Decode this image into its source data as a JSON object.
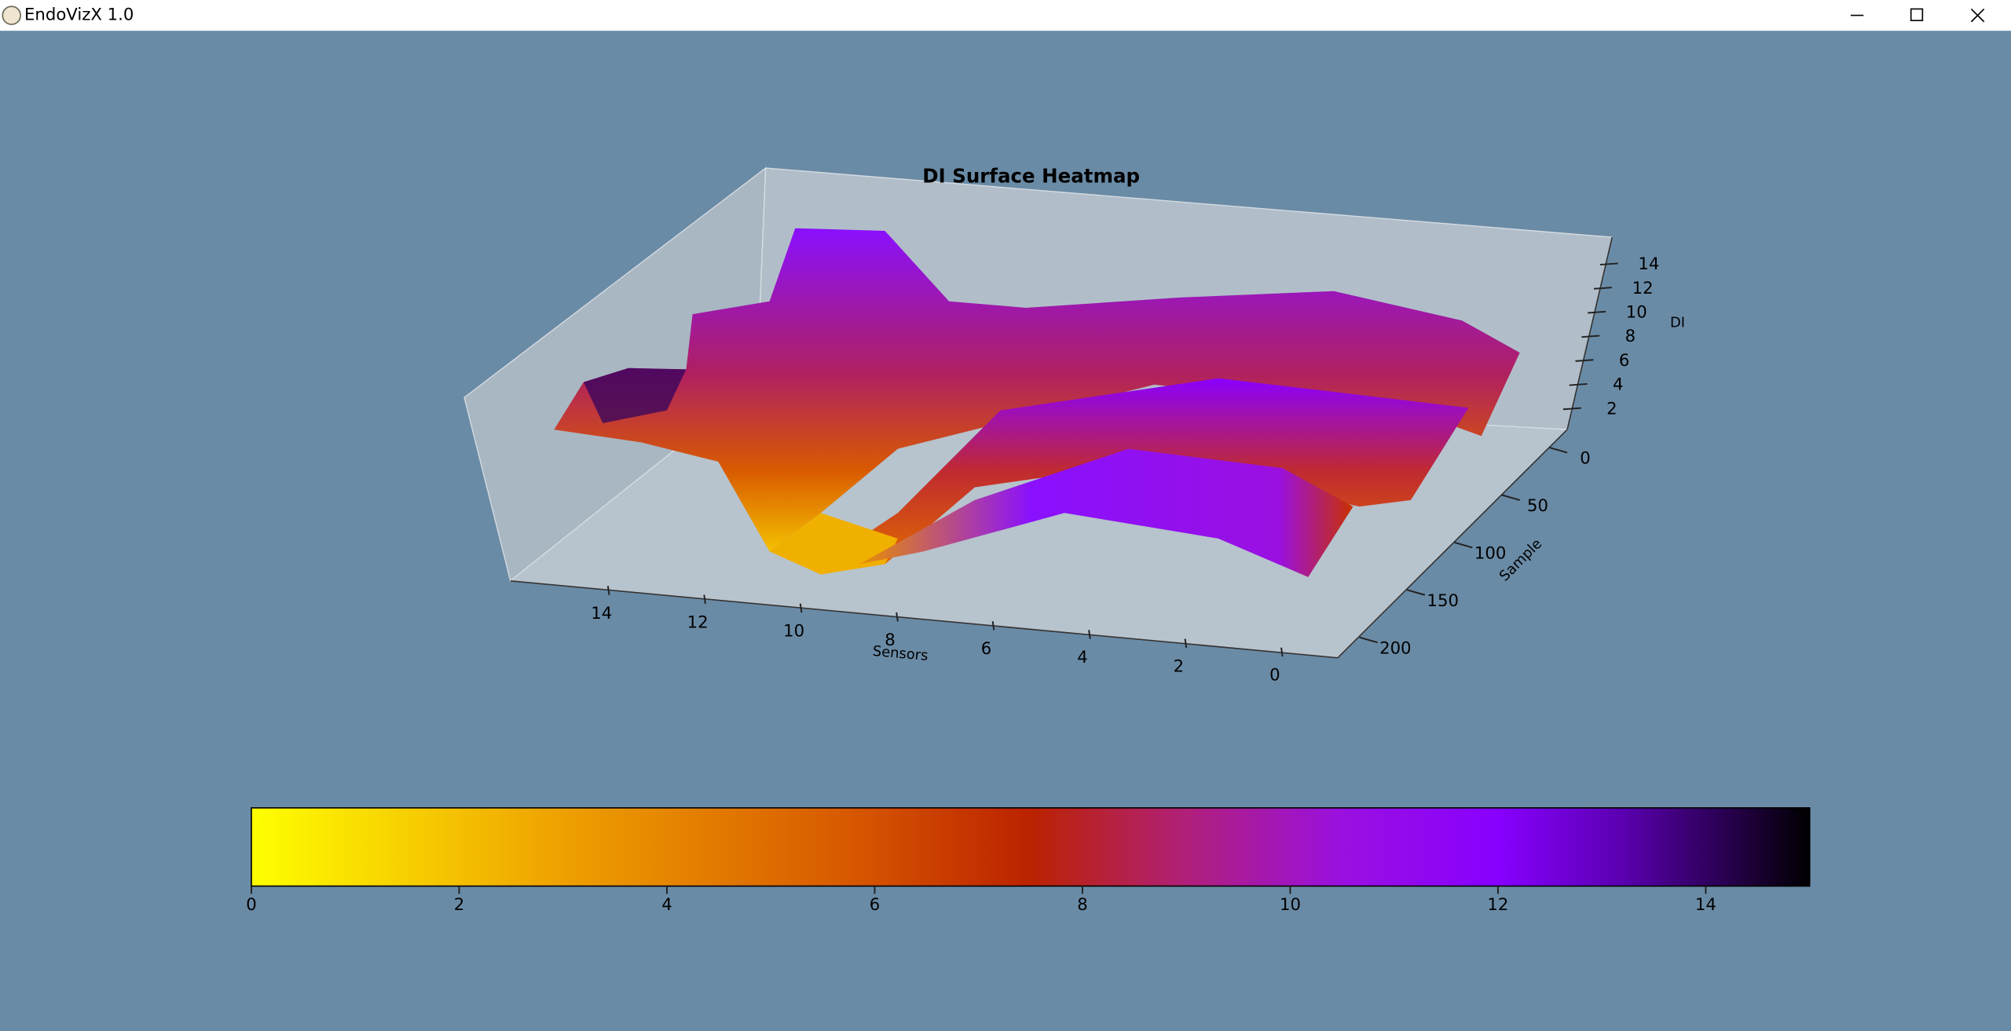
{
  "window": {
    "title": "EndoVizX 1.0"
  },
  "chart_data": {
    "type": "surface",
    "title": "DI Surface Heatmap",
    "xlabel": "Sensors",
    "ylabel": "Sample",
    "zlabel": "DI",
    "xticks": [
      14,
      12,
      10,
      8,
      6,
      4,
      2,
      0
    ],
    "yticks": [
      0,
      50,
      100,
      150,
      200
    ],
    "zticks": [
      14,
      12,
      10,
      8,
      6,
      4,
      2
    ],
    "colorbar": {
      "lim": [
        0,
        15
      ],
      "ticks": [
        0,
        2,
        4,
        6,
        8,
        10,
        12,
        14
      ]
    }
  }
}
